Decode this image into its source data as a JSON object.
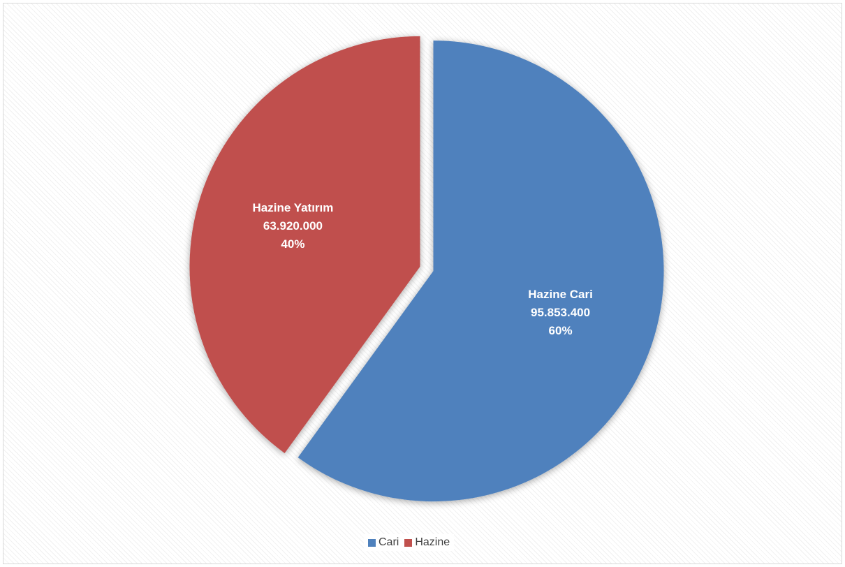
{
  "chart_data": {
    "type": "pie",
    "slices": [
      {
        "label": "Hazine Cari",
        "value_text": "95.853.400",
        "value": 95853400,
        "percent_text": "60%",
        "percent": 60,
        "color": "#4f81bd"
      },
      {
        "label": "Hazine Yatırım",
        "value_text": "63.920.000",
        "value": 63920000,
        "percent_text": "40%",
        "percent": 40,
        "color": "#c0504d"
      }
    ],
    "legend": {
      "position": "bottom",
      "entries": [
        {
          "name": "Cari",
          "color": "#4f81bd"
        },
        {
          "name": "Hazine",
          "color": "#c0504d"
        }
      ]
    }
  }
}
